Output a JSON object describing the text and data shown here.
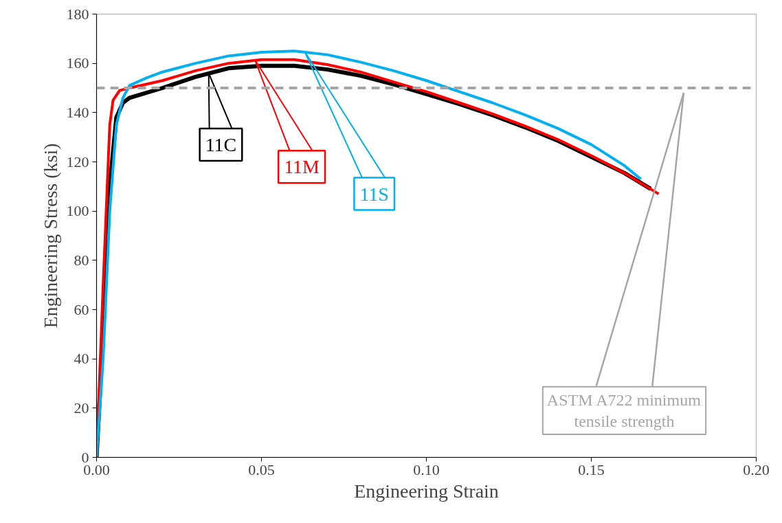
{
  "chart_data": {
    "type": "line",
    "xlabel": "Engineering Strain",
    "ylabel": "Engineering Stress (ksi)",
    "xlim": [
      0,
      0.2
    ],
    "ylim": [
      0,
      180
    ],
    "xticks": [
      {
        "value": 0,
        "label": "0.00"
      },
      {
        "value": 0.05,
        "label": "0.05"
      },
      {
        "value": 0.1,
        "label": "0.10"
      },
      {
        "value": 0.15,
        "label": "0.15"
      },
      {
        "value": 0.2,
        "label": "0.20"
      }
    ],
    "yticks": [
      0,
      20,
      40,
      60,
      80,
      100,
      120,
      140,
      160,
      180
    ],
    "grid": false,
    "marker": "none",
    "line_style": "solid",
    "series": [
      {
        "color": "#000000",
        "x": [
          0,
          0.002,
          0.004,
          0.006,
          0.008,
          0.01,
          0.02,
          0.03,
          0.04,
          0.05,
          0.06,
          0.07,
          0.08,
          0.09,
          0.1,
          0.11,
          0.12,
          0.13,
          0.14,
          0.15,
          0.16,
          0.168
        ],
        "values": [
          0,
          50,
          110,
          138,
          144,
          146,
          150,
          154.5,
          158,
          159,
          159,
          157.5,
          155,
          151.5,
          147.5,
          143.5,
          139,
          134,
          128.5,
          122,
          115.5,
          109
        ]
      },
      {
        "color": "#ff0000",
        "x": [
          0,
          0.002,
          0.004,
          0.005,
          0.007,
          0.01,
          0.02,
          0.03,
          0.04,
          0.05,
          0.06,
          0.07,
          0.08,
          0.09,
          0.1,
          0.11,
          0.12,
          0.13,
          0.14,
          0.15,
          0.16,
          0.1704
        ],
        "values": [
          0,
          70,
          135,
          145,
          149,
          150,
          153,
          157,
          160,
          161.5,
          161.5,
          159.5,
          156.5,
          152.5,
          148.5,
          144,
          139.5,
          134.5,
          129,
          122.5,
          115.5,
          107
        ]
      },
      {
        "color": "#00b0f0",
        "x": [
          0,
          0.002,
          0.004,
          0.006,
          0.008,
          0.01,
          0.015,
          0.02,
          0.03,
          0.04,
          0.05,
          0.06,
          0.07,
          0.08,
          0.09,
          0.1,
          0.11,
          0.12,
          0.13,
          0.14,
          0.15,
          0.16,
          0.165
        ],
        "values": [
          0,
          40,
          100,
          135,
          146,
          151,
          154,
          156.5,
          160,
          163,
          164.5,
          165,
          163.5,
          160.5,
          157,
          153,
          148.5,
          144,
          139,
          133.5,
          127,
          118.5,
          113
        ]
      }
    ],
    "annotations": [
      {
        "text": "11C",
        "x": 0.034,
        "y": 156
      },
      {
        "text": "11M",
        "x": 0.048,
        "y": 161.5
      },
      {
        "text": "11S",
        "x": 0.063,
        "y": 165
      }
    ],
    "ref_lines": [
      {
        "axis": "y",
        "value": 150,
        "label": "ASTM A722 minimum\ntensile strength",
        "color": "#a6a6a6",
        "line_style": "dashed"
      }
    ]
  }
}
